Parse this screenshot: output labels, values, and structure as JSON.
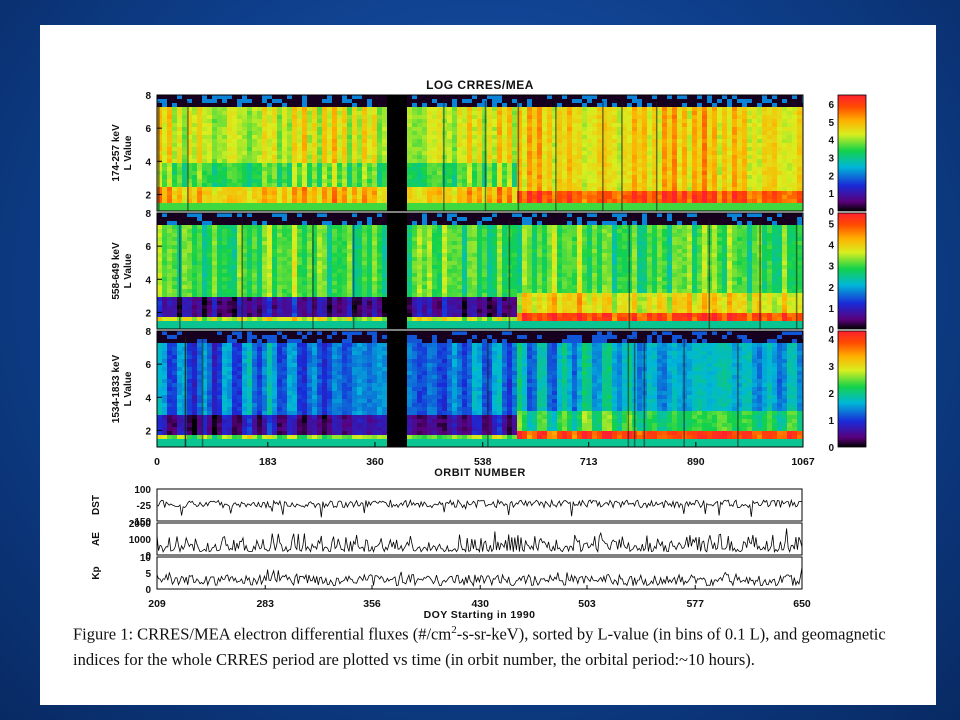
{
  "chart_data": [
    {
      "type": "heatmap",
      "title": "LOG CRRES/MEA",
      "xlabel": "ORBIT NUMBER",
      "xticks": [
        "0",
        "183",
        "360",
        "538",
        "713",
        "890",
        "1067"
      ],
      "xlim": [
        0,
        1067
      ],
      "panels": [
        {
          "label_energy": "174-257 keV",
          "label_axis": "L Value",
          "yticks": [
            "2",
            "4",
            "6",
            "8"
          ],
          "ylim": [
            1,
            8
          ],
          "colorbar_ticks": [
            "0",
            "1",
            "2",
            "3",
            "4",
            "5",
            "6"
          ],
          "colorbar_range": [
            0,
            6.5
          ]
        },
        {
          "label_energy": "558-649 keV",
          "label_axis": "L Value",
          "yticks": [
            "2",
            "4",
            "6",
            "8"
          ],
          "ylim": [
            1,
            8
          ],
          "colorbar_ticks": [
            "0",
            "1",
            "2",
            "3",
            "4",
            "5"
          ],
          "colorbar_range": [
            0,
            5.5
          ]
        },
        {
          "label_energy": "1534-1833 keV",
          "label_axis": "L Value",
          "yticks": [
            "2",
            "4",
            "6",
            "8"
          ],
          "ylim": [
            1,
            8
          ],
          "colorbar_ticks": [
            "0",
            "1",
            "2",
            "3",
            "4"
          ],
          "colorbar_range": [
            0,
            4.3
          ]
        }
      ],
      "data_gap_orbits": [
        375,
        410
      ],
      "injection_orbit": 590
    },
    {
      "type": "line",
      "xlabel": "DOY Starting in 1990",
      "xticks": [
        "209",
        "283",
        "356",
        "430",
        "503",
        "577",
        "650"
      ],
      "xlim": [
        209,
        650
      ],
      "series": [
        {
          "name": "DST",
          "yticks": [
            "100",
            "-25",
            "-150"
          ],
          "ylim": [
            -150,
            100
          ]
        },
        {
          "name": "AE",
          "yticks": [
            "2000",
            "1000",
            "0"
          ],
          "ylim": [
            0,
            2000
          ]
        },
        {
          "name": "Kp",
          "yticks": [
            "10",
            "5",
            "0"
          ],
          "ylim": [
            0,
            10
          ]
        }
      ]
    }
  ],
  "caption": {
    "part1": "Figure 1: CRRES/MEA electron differential fluxes (#/cm",
    "sup": "2",
    "part2": "-s-sr-keV), sorted by L-value (in bins of 0.1 L), and geomagnetic indices for the whole CRRES period are plotted vs time (in orbit number, the orbital period:~10 hours)."
  },
  "colors": {
    "slide_bg": "#0e3f8c",
    "card": "#ffffff"
  }
}
